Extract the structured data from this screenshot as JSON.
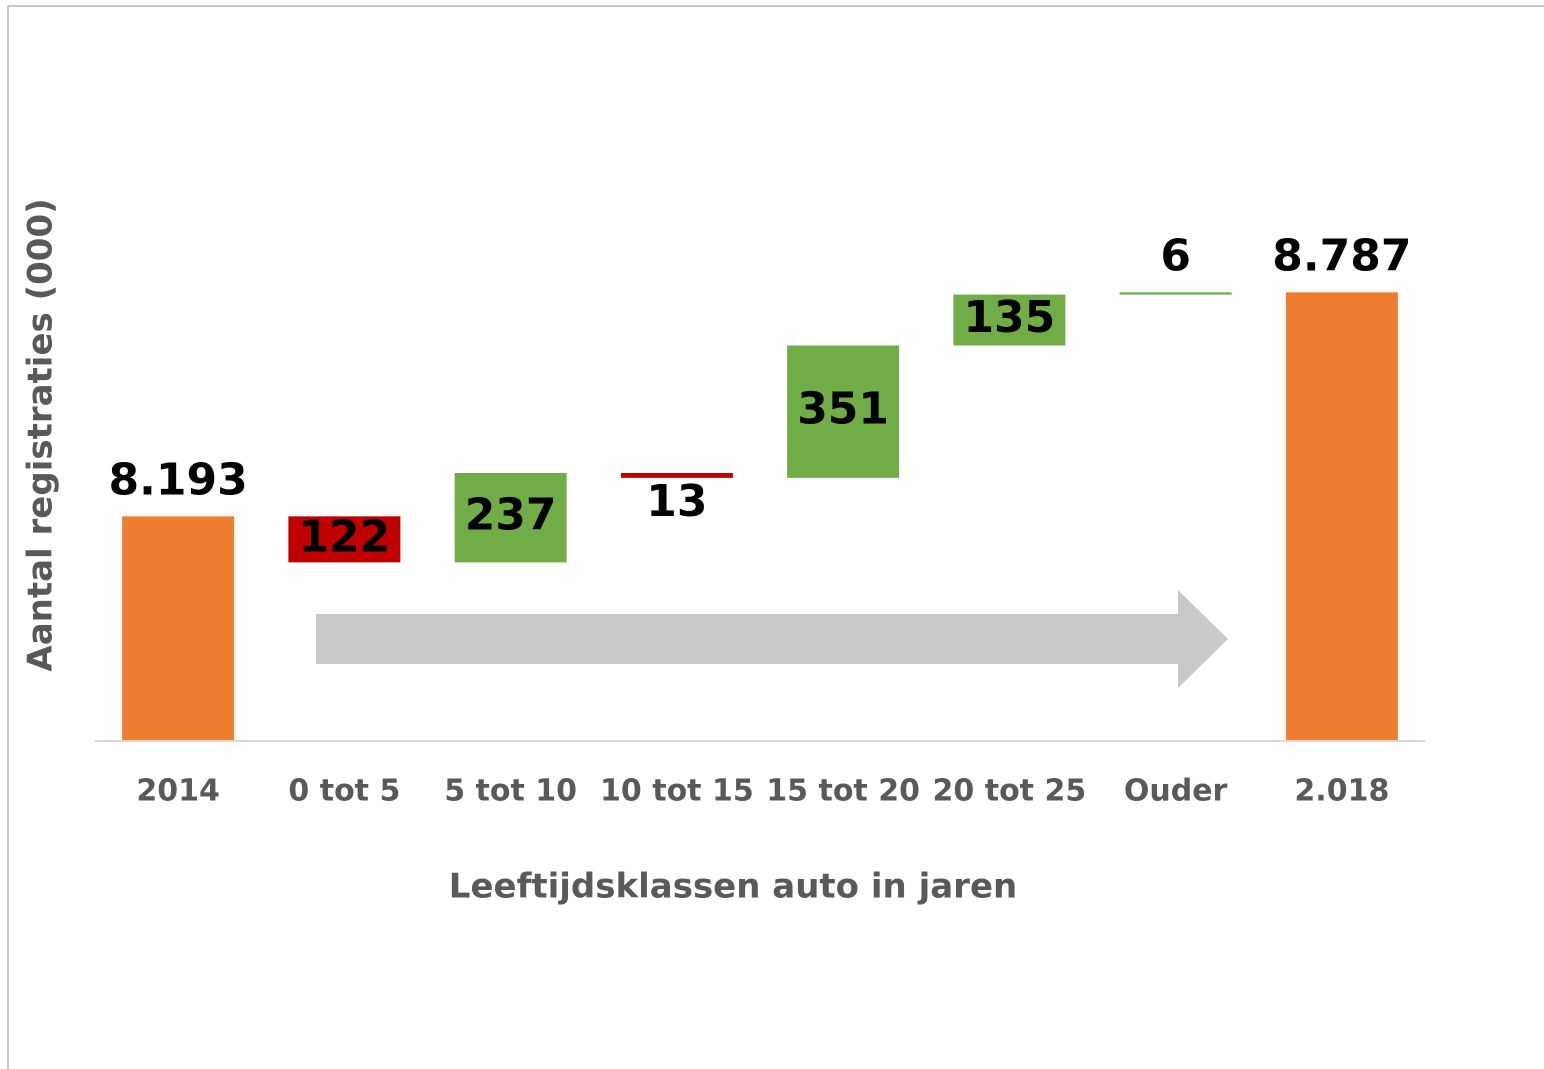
{
  "chart_data": {
    "type": "waterfall",
    "y_label": "Aantal registraties (000)",
    "x_label": "Leeftijdsklassen auto in jaren",
    "categories": [
      "2014",
      "0 tot 5",
      "5 tot 10",
      "10 tot 15",
      "15 tot 20",
      "20 tot 25",
      "Ouder",
      "2.018"
    ],
    "values": [
      8193,
      -122,
      237,
      -13,
      351,
      135,
      6,
      8787
    ],
    "value_labels": [
      "8.193",
      "122",
      "237",
      "13",
      "351",
      "135",
      "6",
      "8.787"
    ],
    "measure": [
      "total",
      "relative",
      "relative",
      "relative",
      "relative",
      "relative",
      "relative",
      "total"
    ],
    "colors": [
      "#ed7d31",
      "#c00000",
      "#70ad47",
      "#c00000",
      "#70ad47",
      "#70ad47",
      "#70ad47",
      "#ed7d31"
    ],
    "ylim": [
      7600,
      9000
    ]
  }
}
